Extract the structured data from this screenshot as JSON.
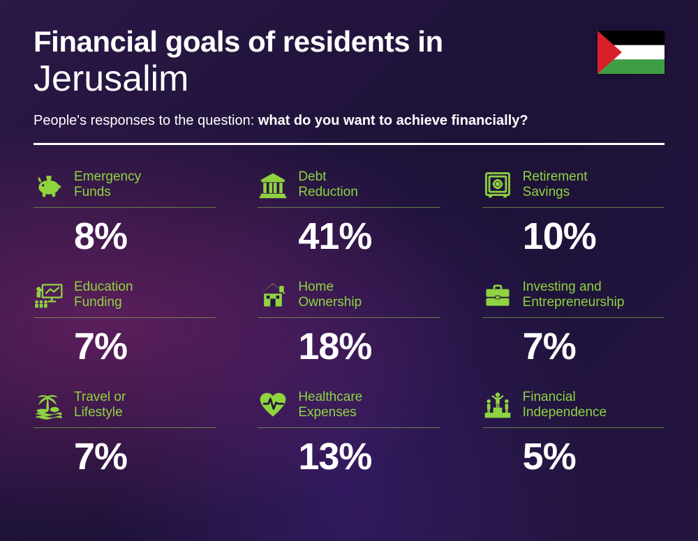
{
  "header": {
    "title": "Financial goals of residents in",
    "location": "Jerusalim",
    "subtitle_prefix": "People's responses to the question: ",
    "subtitle_bold": "what do you want to achieve financially?"
  },
  "colors": {
    "accent": "#8fd43f",
    "text": "#ffffff",
    "divider": "#ffffff"
  },
  "flag": {
    "stripes": [
      "#000000",
      "#ffffff",
      "#3f9e44"
    ],
    "triangle": "#d8202a"
  },
  "items": [
    {
      "label": "Emergency\nFunds",
      "value": "8%",
      "icon": "piggy-bank-icon"
    },
    {
      "label": "Debt\nReduction",
      "value": "41%",
      "icon": "bank-icon"
    },
    {
      "label": "Retirement\nSavings",
      "value": "10%",
      "icon": "safe-icon"
    },
    {
      "label": "Education\nFunding",
      "value": "7%",
      "icon": "presentation-icon"
    },
    {
      "label": "Home\nOwnership",
      "value": "18%",
      "icon": "house-icon"
    },
    {
      "label": "Investing and\nEntrepreneurship",
      "value": "7%",
      "icon": "briefcase-icon"
    },
    {
      "label": "Travel or\nLifestyle",
      "value": "7%",
      "icon": "palm-beach-icon"
    },
    {
      "label": "Healthcare\nExpenses",
      "value": "13%",
      "icon": "heart-pulse-icon"
    },
    {
      "label": "Financial\nIndependence",
      "value": "5%",
      "icon": "podium-icon"
    }
  ],
  "layout": {
    "columns": 3,
    "title_fontsize": 42,
    "location_fontsize": 52,
    "subtitle_fontsize": 20,
    "label_fontsize": 19,
    "value_fontsize": 54
  }
}
